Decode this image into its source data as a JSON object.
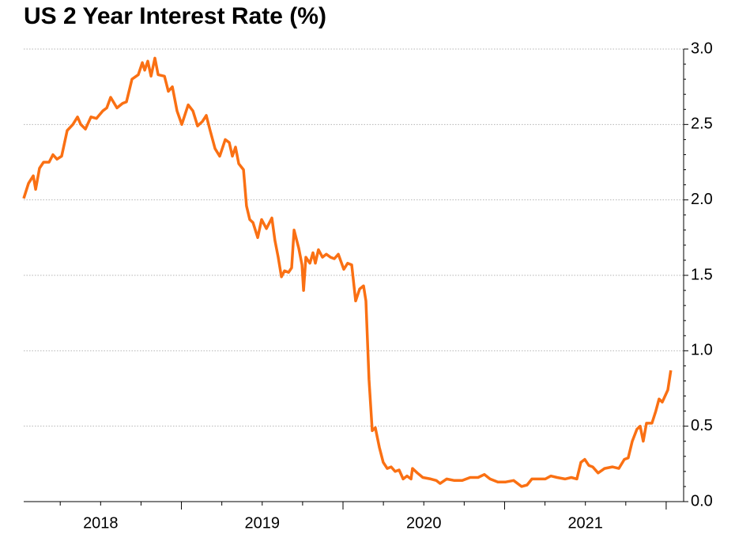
{
  "chart_data": {
    "type": "line",
    "title": "US 2 Year Interest Rate (%)",
    "series": [
      {
        "name": "US 2 Year Interest Rate",
        "color": "#fa7013",
        "x": [
          2018.024,
          2018.054,
          2018.083,
          2018.098,
          2018.122,
          2018.147,
          2018.181,
          2018.205,
          2018.23,
          2018.259,
          2018.293,
          2018.328,
          2018.357,
          2018.377,
          2018.406,
          2018.44,
          2018.474,
          2018.513,
          2018.538,
          2018.562,
          2018.601,
          2018.636,
          2018.66,
          2018.694,
          2018.733,
          2018.758,
          2018.773,
          2018.792,
          2018.812,
          2018.836,
          2018.856,
          2018.895,
          2018.919,
          2018.944,
          2018.973,
          2019.002,
          2019.042,
          2019.071,
          2019.1,
          2019.13,
          2019.154,
          2019.178,
          2019.208,
          2019.237,
          2019.271,
          2019.296,
          2019.315,
          2019.335,
          2019.355,
          2019.384,
          2019.403,
          2019.423,
          2019.443,
          2019.472,
          2019.496,
          2019.526,
          2019.56,
          2019.579,
          2019.599,
          2019.619,
          2019.638,
          2019.663,
          2019.682,
          2019.697,
          2019.726,
          2019.746,
          2019.756,
          2019.77,
          2019.795,
          2019.814,
          2019.829,
          2019.848,
          2019.873,
          2019.897,
          2019.922,
          2019.946,
          2019.971,
          2020.005,
          2020.029,
          2020.054,
          2020.078,
          2020.103,
          2020.127,
          2020.142,
          2020.161,
          2020.181,
          2020.2,
          2020.225,
          2020.249,
          2020.274,
          2020.298,
          2020.323,
          2020.347,
          2020.372,
          2020.396,
          2020.421,
          2020.43,
          2020.46,
          2020.494,
          2020.543,
          2020.577,
          2020.601,
          2020.641,
          2020.689,
          2020.738,
          2020.787,
          2020.836,
          2020.875,
          2020.91,
          2020.958,
          2021.007,
          2021.056,
          2021.105,
          2021.139,
          2021.169,
          2021.203,
          2021.252,
          2021.286,
          2021.325,
          2021.374,
          2021.413,
          2021.447,
          2021.472,
          2021.496,
          2021.521,
          2021.545,
          2021.579,
          2021.619,
          2021.667,
          2021.707,
          2021.741,
          2021.765,
          2021.79,
          2021.819,
          2021.839,
          2021.858,
          2021.878,
          2021.912,
          2021.936,
          2021.956,
          2021.976,
          2022.01,
          2022.029
        ],
        "values": [
          2.01,
          2.11,
          2.16,
          2.07,
          2.21,
          2.25,
          2.25,
          2.3,
          2.27,
          2.29,
          2.46,
          2.5,
          2.55,
          2.5,
          2.47,
          2.55,
          2.54,
          2.59,
          2.61,
          2.68,
          2.61,
          2.64,
          2.65,
          2.8,
          2.83,
          2.91,
          2.86,
          2.92,
          2.82,
          2.94,
          2.83,
          2.82,
          2.72,
          2.75,
          2.59,
          2.5,
          2.63,
          2.59,
          2.49,
          2.52,
          2.56,
          2.46,
          2.34,
          2.29,
          2.4,
          2.38,
          2.29,
          2.35,
          2.24,
          2.2,
          1.96,
          1.87,
          1.85,
          1.75,
          1.87,
          1.81,
          1.88,
          1.73,
          1.62,
          1.49,
          1.53,
          1.52,
          1.55,
          1.8,
          1.68,
          1.57,
          1.4,
          1.62,
          1.58,
          1.65,
          1.58,
          1.67,
          1.62,
          1.64,
          1.62,
          1.61,
          1.64,
          1.54,
          1.58,
          1.57,
          1.33,
          1.41,
          1.43,
          1.33,
          0.81,
          0.47,
          0.49,
          0.36,
          0.26,
          0.22,
          0.23,
          0.2,
          0.21,
          0.15,
          0.17,
          0.15,
          0.22,
          0.19,
          0.16,
          0.15,
          0.14,
          0.12,
          0.15,
          0.14,
          0.14,
          0.16,
          0.16,
          0.18,
          0.15,
          0.13,
          0.13,
          0.14,
          0.1,
          0.11,
          0.15,
          0.15,
          0.15,
          0.17,
          0.16,
          0.15,
          0.16,
          0.15,
          0.26,
          0.28,
          0.24,
          0.23,
          0.19,
          0.22,
          0.23,
          0.22,
          0.28,
          0.29,
          0.4,
          0.48,
          0.5,
          0.4,
          0.52,
          0.52,
          0.6,
          0.68,
          0.66,
          0.74,
          0.87
        ]
      }
    ],
    "xlim": [
      2018.024,
      2022.108
    ],
    "xticks": [
      {
        "value": 2018.5,
        "label": "2018"
      },
      {
        "value": 2019.5,
        "label": "2019"
      },
      {
        "value": 2020.5,
        "label": "2020"
      },
      {
        "value": 2021.5,
        "label": "2021"
      }
    ],
    "x_minor_ticks": [
      2018.25,
      2018.5,
      2018.75,
      2019.0,
      2019.25,
      2019.5,
      2019.75,
      2020.0,
      2020.25,
      2020.5,
      2020.75,
      2021.0,
      2021.25,
      2021.5,
      2021.75,
      2022.0
    ],
    "ylim": [
      0,
      3
    ],
    "yticks": [
      {
        "value": 0,
        "label": "0.0"
      },
      {
        "value": 0.5,
        "label": "0.5"
      },
      {
        "value": 1,
        "label": "1.0"
      },
      {
        "value": 1.5,
        "label": "1.5"
      },
      {
        "value": 2,
        "label": "2.0"
      },
      {
        "value": 2.5,
        "label": "2.5"
      },
      {
        "value": 3,
        "label": "3.0"
      }
    ],
    "y_minor_ticks": [
      0.1,
      0.2,
      0.3,
      0.4,
      0.6,
      0.7,
      0.8,
      0.9,
      1.1,
      1.2,
      1.3,
      1.4,
      1.6,
      1.7,
      1.8,
      1.9,
      2.1,
      2.2,
      2.3,
      2.4,
      2.6,
      2.7,
      2.8,
      2.9
    ],
    "grid": true,
    "y_axis_side": "right"
  }
}
